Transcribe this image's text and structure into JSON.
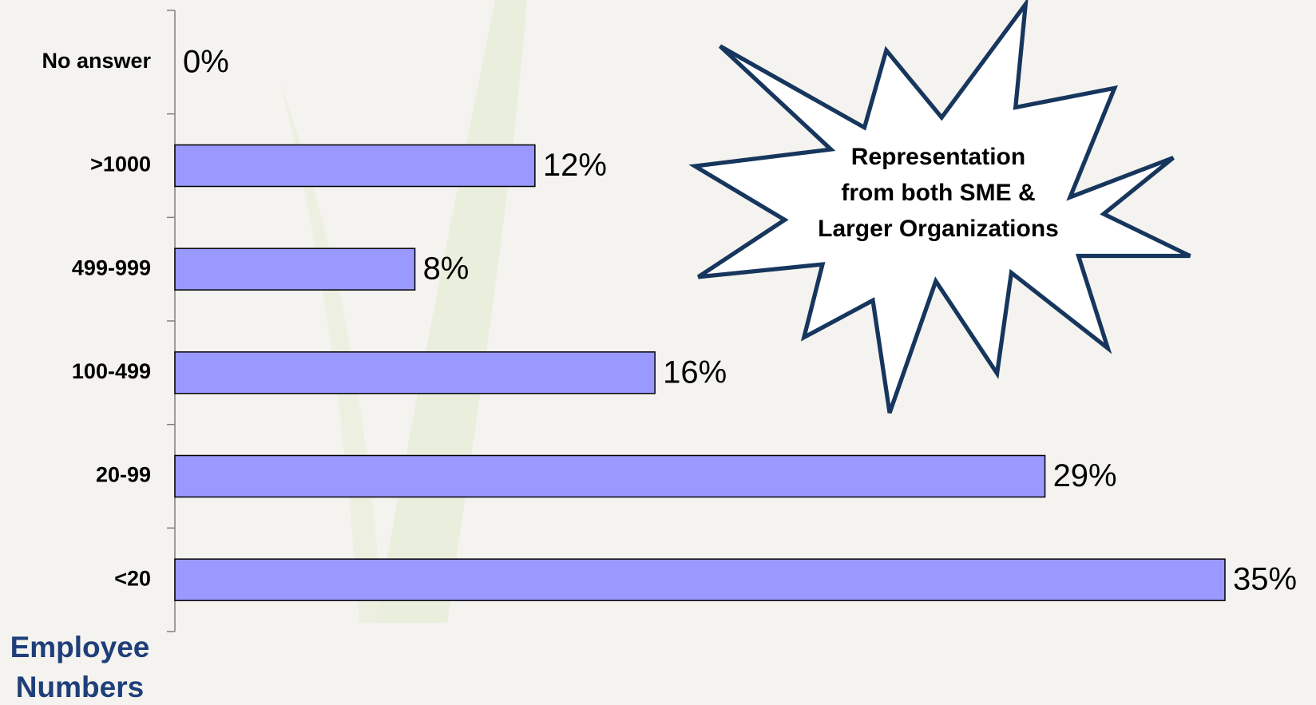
{
  "chart_data": {
    "type": "barh",
    "categories": [
      "No answer",
      ">1000",
      "499-999",
      "100-499",
      "20-99",
      "<20"
    ],
    "values": [
      0,
      12,
      8,
      16,
      29,
      35
    ],
    "value_labels": [
      "0%",
      "12%",
      "8%",
      "16%",
      "29%",
      "35%"
    ],
    "color": "#9999ff",
    "y_label": [
      "Employee",
      "Numbers"
    ],
    "annotation": [
      "Representation",
      "from both SME &",
      "Larger Organizations"
    ]
  }
}
